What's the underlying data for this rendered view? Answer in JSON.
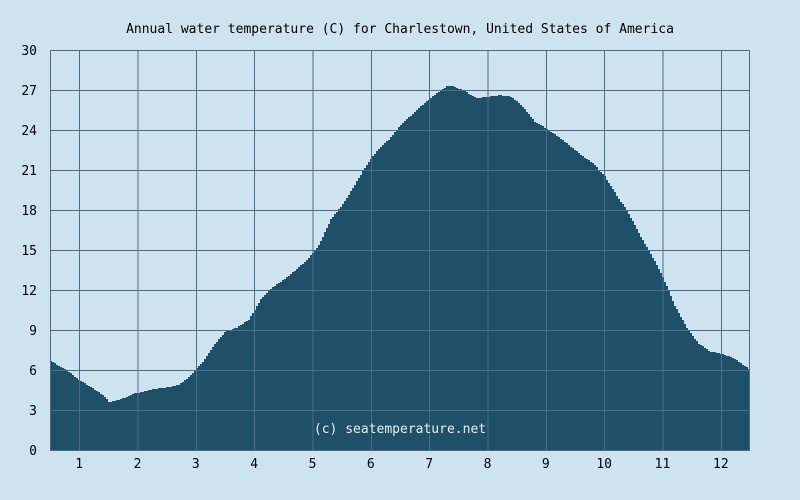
{
  "colors": {
    "background": "#cde3ef",
    "area_fill": "#1f5068",
    "grid": "#4a6c86",
    "credit": "#e6eef4"
  },
  "chart_data": {
    "type": "area",
    "title": "Annual water temperature (C) for Charlestown, United States of America",
    "xlabel": "",
    "ylabel": "",
    "credit": "(c) seatemperature.net",
    "xlim": [
      0.5,
      12.5
    ],
    "ylim": [
      0,
      30
    ],
    "grid": true,
    "legend": "none",
    "x_ticks": [
      1,
      2,
      3,
      4,
      5,
      6,
      7,
      8,
      9,
      10,
      11,
      12
    ],
    "x_tick_labels": [
      "1",
      "2",
      "3",
      "4",
      "5",
      "6",
      "7",
      "8",
      "9",
      "10",
      "11",
      "12"
    ],
    "y_ticks": [
      0,
      3,
      6,
      9,
      12,
      15,
      18,
      21,
      24,
      27,
      30
    ],
    "y_tick_labels": [
      "0",
      "3",
      "6",
      "9",
      "12",
      "15",
      "18",
      "21",
      "24",
      "27",
      "30"
    ],
    "series": [
      {
        "x": [
          0.5,
          0.6,
          0.8,
          1.0,
          1.2,
          1.4,
          1.5,
          1.7,
          1.9,
          2.1,
          2.3,
          2.5,
          2.7,
          2.9,
          3.1,
          3.3,
          3.5,
          3.7,
          3.9,
          4.1,
          4.3,
          4.5,
          4.7,
          4.9,
          5.1,
          5.3,
          5.5,
          5.7,
          5.9,
          6.1,
          6.3,
          6.5,
          6.7,
          6.9,
          7.1,
          7.3,
          7.4,
          7.6,
          7.8,
          8.0,
          8.2,
          8.4,
          8.6,
          8.8,
          9.0,
          9.2,
          9.4,
          9.6,
          9.8,
          10.0,
          10.2,
          10.4,
          10.6,
          10.8,
          11.0,
          11.2,
          11.4,
          11.6,
          11.8,
          12.0,
          12.2,
          12.4,
          12.5
        ],
        "y": [
          6.7,
          6.4,
          5.9,
          5.2,
          4.7,
          4.1,
          3.6,
          3.8,
          4.2,
          4.4,
          4.6,
          4.7,
          4.9,
          5.6,
          6.6,
          7.9,
          8.9,
          9.2,
          9.8,
          11.3,
          12.2,
          12.8,
          13.5,
          14.3,
          15.4,
          17.3,
          18.4,
          19.8,
          21.3,
          22.5,
          23.3,
          24.4,
          25.2,
          26.0,
          26.7,
          27.3,
          27.3,
          26.9,
          26.4,
          26.5,
          26.6,
          26.5,
          25.7,
          24.6,
          24.1,
          23.5,
          22.8,
          22.1,
          21.5,
          20.5,
          19.1,
          17.8,
          16.1,
          14.6,
          12.9,
          10.8,
          9.2,
          8.0,
          7.4,
          7.2,
          6.9,
          6.3,
          6.0
        ]
      }
    ]
  }
}
